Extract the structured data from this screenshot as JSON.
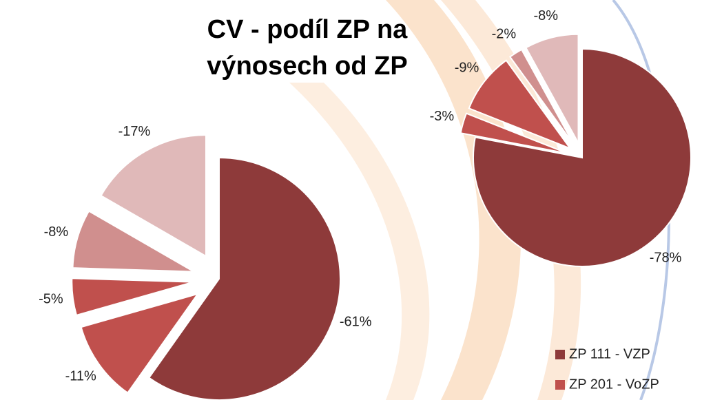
{
  "chart_data": [
    {
      "type": "pie",
      "title": [
        "CV - podíl ZP na",
        "výnosech od ZP"
      ],
      "categories": [
        "ZP 111 - VZP",
        "ZP 201 - VoZP",
        null,
        null,
        null
      ],
      "colors": [
        "#8e3a3a",
        "#c0504d",
        "#c0504d",
        "#d08f8e",
        "#e0b9b9"
      ],
      "values": [
        -61,
        -11,
        -5,
        -8,
        -17
      ],
      "value_labels": [
        "-61%",
        "-11%",
        "-5%",
        "-8%",
        "-17%"
      ]
    },
    {
      "type": "pie",
      "values": [
        -78,
        -3,
        -9,
        -2,
        -8
      ],
      "value_labels": [
        "-78%",
        "-3%",
        "-9%",
        "-2%",
        "-8%"
      ]
    }
  ]
}
